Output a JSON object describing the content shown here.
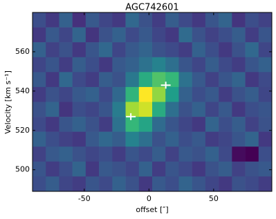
{
  "chart_data": {
    "type": "heatmap",
    "title": "AGC742601",
    "x_label": "offset [″]",
    "y_label": "Velocity [km s⁻¹]",
    "xlim": [
      -90,
      95
    ],
    "ylim": [
      489,
      580
    ],
    "xticks": [
      -50,
      0,
      50
    ],
    "yticks": [
      500,
      520,
      540,
      560
    ],
    "colormap": "viridis",
    "z": [
      [
        0.35,
        0.3,
        0.4,
        0.28,
        0.38,
        0.33,
        0.3,
        0.42,
        0.36,
        0.31,
        0.39,
        0.34,
        0.3,
        0.37,
        0.41,
        0.29,
        0.35,
        0.32
      ],
      [
        0.3,
        0.38,
        0.33,
        0.41,
        0.29,
        0.36,
        0.4,
        0.34,
        0.38,
        0.33,
        0.3,
        0.43,
        0.36,
        0.32,
        0.35,
        0.39,
        0.31,
        0.37
      ],
      [
        0.4,
        0.32,
        0.36,
        0.3,
        0.37,
        0.42,
        0.33,
        0.38,
        0.41,
        0.36,
        0.34,
        0.31,
        0.4,
        0.35,
        0.3,
        0.36,
        0.42,
        0.33
      ],
      [
        0.33,
        0.37,
        0.31,
        0.39,
        0.35,
        0.3,
        0.38,
        0.4,
        0.45,
        0.5,
        0.44,
        0.37,
        0.33,
        0.39,
        0.34,
        0.31,
        0.37,
        0.4
      ],
      [
        0.38,
        0.3,
        0.42,
        0.34,
        0.31,
        0.39,
        0.36,
        0.47,
        0.62,
        0.7,
        0.66,
        0.45,
        0.38,
        0.32,
        0.37,
        0.41,
        0.3,
        0.34
      ],
      [
        0.31,
        0.36,
        0.33,
        0.38,
        0.4,
        0.34,
        0.42,
        0.65,
        0.9,
        0.78,
        0.58,
        0.4,
        0.35,
        0.38,
        0.31,
        0.36,
        0.39,
        0.33
      ],
      [
        0.36,
        0.41,
        0.29,
        0.35,
        0.33,
        0.37,
        0.48,
        0.8,
        0.85,
        0.62,
        0.44,
        0.36,
        0.4,
        0.33,
        0.38,
        0.3,
        0.35,
        0.37
      ],
      [
        0.34,
        0.3,
        0.37,
        0.4,
        0.36,
        0.31,
        0.45,
        0.66,
        0.6,
        0.43,
        0.37,
        0.33,
        0.3,
        0.41,
        0.35,
        0.39,
        0.32,
        0.36
      ],
      [
        0.4,
        0.35,
        0.32,
        0.3,
        0.38,
        0.42,
        0.39,
        0.5,
        0.44,
        0.36,
        0.4,
        0.35,
        0.38,
        0.31,
        0.33,
        0.37,
        0.41,
        0.3
      ],
      [
        0.32,
        0.38,
        0.4,
        0.36,
        0.33,
        0.35,
        0.31,
        0.37,
        0.34,
        0.39,
        0.32,
        0.38,
        0.36,
        0.4,
        0.34,
        0.2,
        0.18,
        0.35
      ],
      [
        0.37,
        0.31,
        0.35,
        0.41,
        0.3,
        0.38,
        0.36,
        0.33,
        0.4,
        0.31,
        0.37,
        0.34,
        0.3,
        0.36,
        0.39,
        0.32,
        0.36,
        0.38
      ],
      [
        0.35,
        0.39,
        0.33,
        0.31,
        0.37,
        0.34,
        0.4,
        0.36,
        0.3,
        0.38,
        0.35,
        0.41,
        0.37,
        0.33,
        0.3,
        0.36,
        0.34,
        0.31
      ]
    ],
    "markers": {
      "color": "#ffffff",
      "x": [
        -14,
        13
      ],
      "y": [
        527,
        543
      ]
    }
  }
}
